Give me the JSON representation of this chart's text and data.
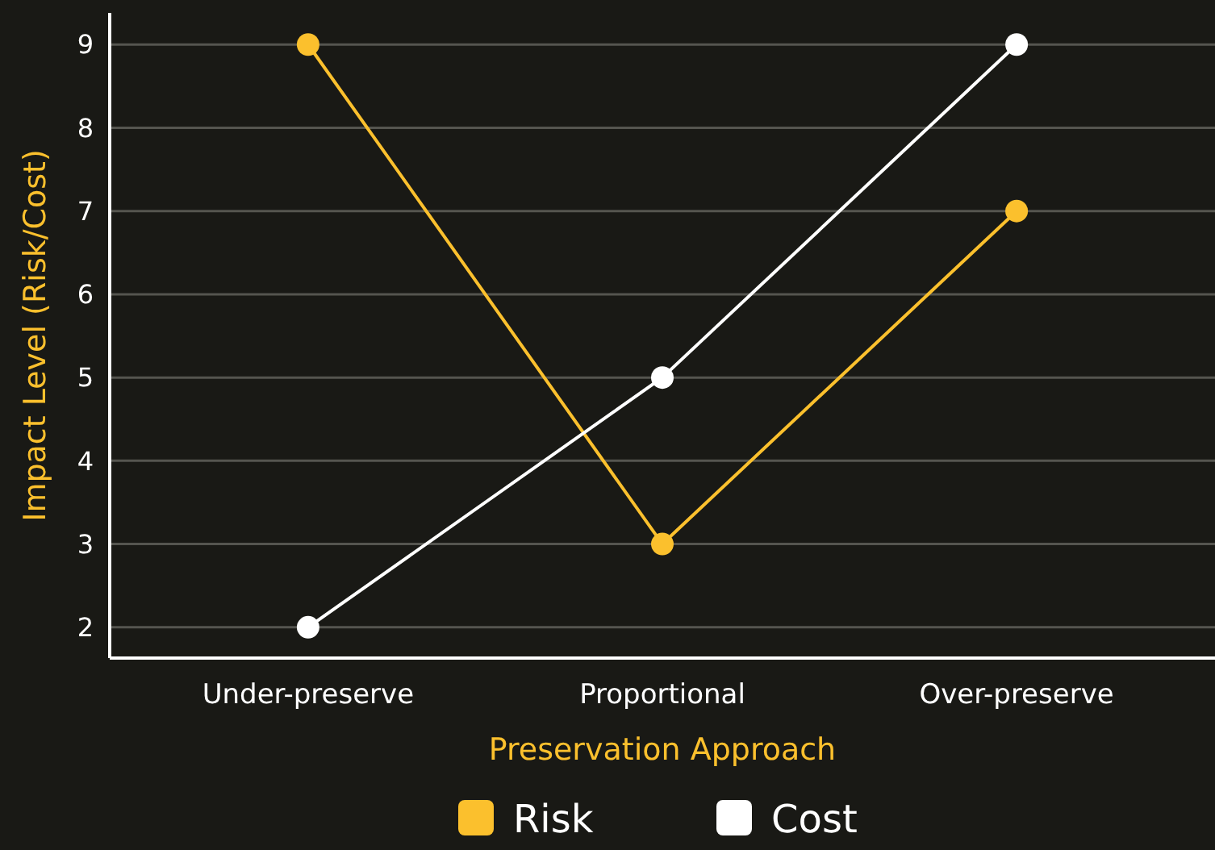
{
  "chart_data": {
    "type": "line",
    "xlabel": "Preservation Approach",
    "ylabel": "Impact Level (Risk/Cost)",
    "categories": [
      "Under-preserve",
      "Proportional",
      "Over-preserve"
    ],
    "series": [
      {
        "name": "Risk",
        "color": "#fbc02d",
        "values": [
          9,
          3,
          7
        ]
      },
      {
        "name": "Cost",
        "color": "#ffffff",
        "values": [
          2,
          5,
          9
        ]
      }
    ],
    "ylim": [
      1.63,
      9.38
    ],
    "yticks": [
      2,
      3,
      4,
      5,
      6,
      7,
      8,
      9
    ],
    "grid": "y",
    "legend": "bottom",
    "marker": "circle",
    "line_style": "solid"
  }
}
